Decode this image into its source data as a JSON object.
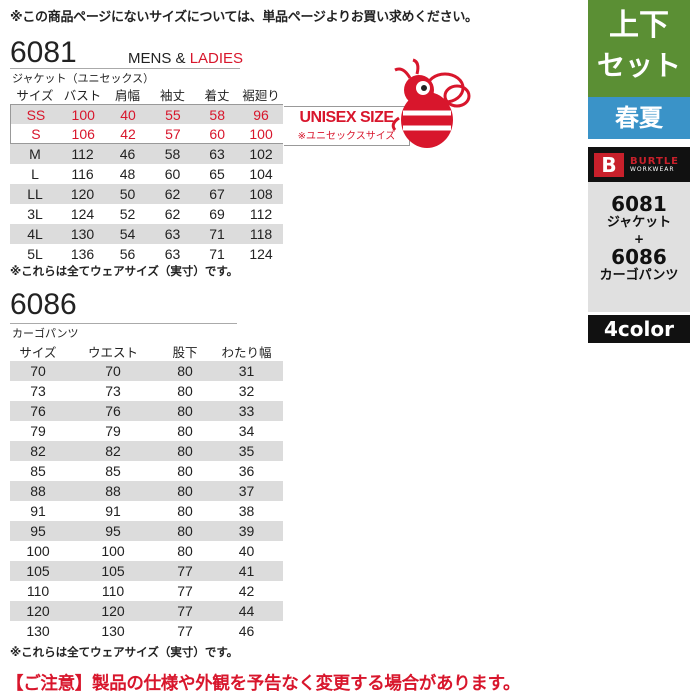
{
  "top_note": "※この商品ページにないサイズについては、単品ページよりお買い求めください。",
  "jacket": {
    "model": "6081",
    "gender_mens": "MENS &",
    "gender_ladies": "LADIES",
    "subtitle": "ジャケット（ユニセックス）",
    "headers": [
      "サイズ",
      "バスト",
      "肩幅",
      "袖丈",
      "着丈",
      "裾廻り"
    ],
    "rows": [
      [
        "SS",
        "100",
        "40",
        "55",
        "58",
        "96"
      ],
      [
        "S",
        "106",
        "42",
        "57",
        "60",
        "100"
      ],
      [
        "M",
        "112",
        "46",
        "58",
        "63",
        "102"
      ],
      [
        "L",
        "116",
        "48",
        "60",
        "65",
        "104"
      ],
      [
        "LL",
        "120",
        "50",
        "62",
        "67",
        "108"
      ],
      [
        "3L",
        "124",
        "52",
        "62",
        "69",
        "112"
      ],
      [
        "4L",
        "130",
        "54",
        "63",
        "71",
        "118"
      ],
      [
        "5L",
        "136",
        "56",
        "63",
        "71",
        "124"
      ]
    ],
    "unisex_title": "UNISEX SIZE",
    "unisex_sub": "※ユニセックスサイズ",
    "note": "※これらは全てウェアサイズ（実寸）です。"
  },
  "pants": {
    "model": "6086",
    "subtitle": "カーゴパンツ",
    "headers": [
      "サイズ",
      "ウエスト",
      "股下",
      "わたり幅"
    ],
    "rows": [
      [
        "70",
        "70",
        "80",
        "31"
      ],
      [
        "73",
        "73",
        "80",
        "32"
      ],
      [
        "76",
        "76",
        "80",
        "33"
      ],
      [
        "79",
        "79",
        "80",
        "34"
      ],
      [
        "82",
        "82",
        "80",
        "35"
      ],
      [
        "85",
        "85",
        "80",
        "36"
      ],
      [
        "88",
        "88",
        "80",
        "37"
      ],
      [
        "91",
        "91",
        "80",
        "38"
      ],
      [
        "95",
        "95",
        "80",
        "39"
      ],
      [
        "100",
        "100",
        "80",
        "40"
      ],
      [
        "105",
        "105",
        "77",
        "41"
      ],
      [
        "110",
        "110",
        "77",
        "42"
      ],
      [
        "120",
        "120",
        "77",
        "44"
      ],
      [
        "130",
        "130",
        "77",
        "46"
      ]
    ],
    "note": "※これらは全てウェアサイズ（実寸）です。"
  },
  "side": {
    "set_line1": "上下",
    "set_line2": "セット",
    "season": "春夏",
    "brand": "BURTLE",
    "brand_sub": "WORKWEAR",
    "item1_code": "6081",
    "item1_name": "ジャケット",
    "plus": "+",
    "item2_code": "6086",
    "item2_name": "カーゴパンツ",
    "colors": "4color"
  },
  "bottom_notice": "【ご注意】製品の仕様や外観を予告なく変更する場合があります。",
  "colors": {
    "red": "#d8162c",
    "green": "#5b8f34",
    "blue": "#3a93c8",
    "gray": "#dcdcdc"
  }
}
